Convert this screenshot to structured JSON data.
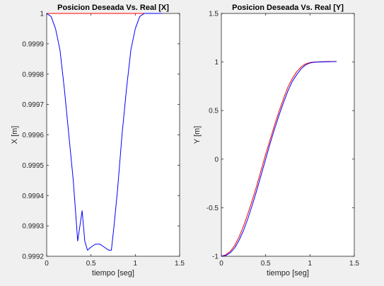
{
  "chart_data": [
    {
      "type": "line",
      "title": "Posicion Deseada Vs. Real [X]",
      "xlabel": "tiempo [seg]",
      "ylabel": "X [m]",
      "xlim": [
        0,
        1.5
      ],
      "ylim": [
        0.9992,
        1.0
      ],
      "xticks": [
        "0",
        "0.5",
        "1",
        "1.5"
      ],
      "xtick_values": [
        0,
        0.5,
        1,
        1.5
      ],
      "yticks": [
        "0.9992",
        "0.9993",
        "0.9994",
        "0.9995",
        "0.9996",
        "0.9997",
        "0.9998",
        "0.9999",
        "1"
      ],
      "ytick_values": [
        0.9992,
        0.9993,
        0.9994,
        0.9995,
        0.9996,
        0.9997,
        0.9998,
        0.9999,
        1.0
      ],
      "grid": false,
      "series": [
        {
          "color": "#ff0000",
          "x": [
            0,
            1.3
          ],
          "y": [
            1.0,
            1.0
          ]
        },
        {
          "color": "#0000ff",
          "x": [
            0,
            0.05,
            0.1,
            0.15,
            0.2,
            0.25,
            0.3,
            0.35,
            0.4,
            0.43,
            0.46,
            0.5,
            0.55,
            0.6,
            0.65,
            0.7,
            0.73,
            0.76,
            0.8,
            0.85,
            0.9,
            0.95,
            1.0,
            1.05,
            1.1,
            1.15,
            1.2,
            1.3
          ],
          "y": [
            1.0,
            0.99999,
            0.99995,
            0.99988,
            0.99975,
            0.9996,
            0.99945,
            0.99925,
            0.99935,
            0.99925,
            0.99922,
            0.99923,
            0.99924,
            0.99924,
            0.99923,
            0.99922,
            0.99922,
            0.9993,
            0.99942,
            0.9996,
            0.99975,
            0.99988,
            0.99995,
            0.99999,
            1.0,
            1.0,
            1.0,
            1.0
          ]
        }
      ]
    },
    {
      "type": "line",
      "title": "Posicion Deseada Vs. Real [Y]",
      "xlabel": "tiempo [seg]",
      "ylabel": "Y [m]",
      "xlim": [
        0,
        1.5
      ],
      "ylim": [
        -1.0,
        1.5
      ],
      "xticks": [
        "0",
        "0.5",
        "1",
        "1.5"
      ],
      "xtick_values": [
        0,
        0.5,
        1,
        1.5
      ],
      "yticks": [
        "-1",
        "-0.5",
        "0",
        "0.5",
        "1",
        "1.5"
      ],
      "ytick_values": [
        -1.0,
        -0.5,
        0,
        0.5,
        1.0,
        1.5
      ],
      "grid": false,
      "series": [
        {
          "color": "#ff0000",
          "x": [
            0,
            0.05,
            0.1,
            0.15,
            0.2,
            0.25,
            0.3,
            0.35,
            0.4,
            0.45,
            0.5,
            0.55,
            0.6,
            0.65,
            0.7,
            0.75,
            0.8,
            0.85,
            0.9,
            0.95,
            1.0,
            1.05,
            1.1,
            1.2,
            1.3
          ],
          "y": [
            -1.0,
            -0.985,
            -0.95,
            -0.89,
            -0.8,
            -0.69,
            -0.56,
            -0.42,
            -0.27,
            -0.11,
            0.05,
            0.2,
            0.35,
            0.49,
            0.62,
            0.74,
            0.83,
            0.9,
            0.95,
            0.98,
            0.995,
            1.0,
            1.002,
            1.005,
            1.005
          ]
        },
        {
          "color": "#0000ff",
          "x": [
            0,
            0.05,
            0.1,
            0.15,
            0.2,
            0.25,
            0.3,
            0.35,
            0.4,
            0.45,
            0.5,
            0.55,
            0.6,
            0.65,
            0.7,
            0.75,
            0.8,
            0.85,
            0.9,
            0.95,
            1.0,
            1.05,
            1.1,
            1.2,
            1.3
          ],
          "y": [
            -1.0,
            -0.992,
            -0.965,
            -0.915,
            -0.835,
            -0.735,
            -0.61,
            -0.47,
            -0.32,
            -0.16,
            0.0,
            0.16,
            0.31,
            0.45,
            0.58,
            0.7,
            0.8,
            0.87,
            0.93,
            0.97,
            0.99,
            0.998,
            1.0,
            1.003,
            1.005
          ]
        }
      ]
    }
  ]
}
